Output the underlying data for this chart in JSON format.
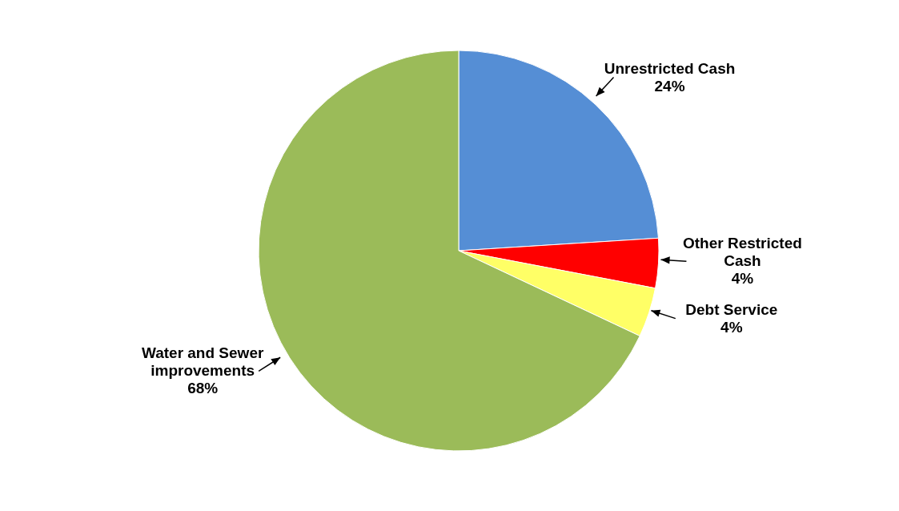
{
  "chart_data": {
    "type": "pie",
    "categories": [
      "Unrestricted Cash",
      "Other Restricted Cash",
      "Debt Service",
      "Water and Sewer improvements"
    ],
    "values": [
      24,
      4,
      4,
      68
    ],
    "colors": [
      "#558ed5",
      "#ff0000",
      "#ffff66",
      "#9bbb59"
    ],
    "value_labels": [
      "24%",
      "4%",
      "4%",
      "68%"
    ],
    "legend": false
  }
}
